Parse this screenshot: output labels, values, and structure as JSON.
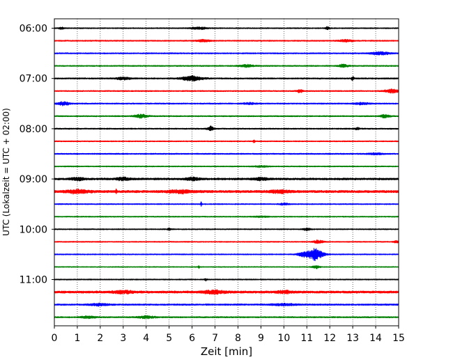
{
  "chart_data": {
    "type": "line",
    "chart_kind": "helicorder",
    "xlabel": "Zeit  [min]",
    "ylabel": "UTC (Lokalzeit = UTC + 02:00)",
    "xlim": [
      0,
      15
    ],
    "x_ticks": [
      0,
      1,
      2,
      3,
      4,
      5,
      6,
      7,
      8,
      9,
      10,
      11,
      12,
      13,
      14,
      15
    ],
    "y_tick_labels": [
      "06:00",
      "07:00",
      "08:00",
      "09:00",
      "10:00",
      "11:00"
    ],
    "grid": {
      "x": true,
      "style": "dotted"
    },
    "trace_interval_minutes": 15,
    "trace_colors": [
      "#000000",
      "#ff0000",
      "#0000ff",
      "#008000"
    ],
    "traces": [
      {
        "start": "06:00",
        "color": "#000000",
        "noise": 0.7,
        "events": [
          {
            "t": 0.3,
            "amp": 1.6,
            "width": 0.1
          },
          {
            "t": 6.3,
            "amp": 1.4,
            "width": 0.35
          },
          {
            "t": 11.9,
            "amp": 1.8,
            "width": 0.08
          }
        ]
      },
      {
        "start": "06:15",
        "color": "#ff0000",
        "noise": 0.8,
        "events": [
          {
            "t": 6.5,
            "amp": 1.3,
            "width": 0.3
          },
          {
            "t": 12.7,
            "amp": 1.3,
            "width": 0.3
          }
        ]
      },
      {
        "start": "06:30",
        "color": "#0000ff",
        "noise": 0.8,
        "events": [
          {
            "t": 14.2,
            "amp": 2.0,
            "width": 0.4
          }
        ]
      },
      {
        "start": "06:45",
        "color": "#008000",
        "noise": 0.8,
        "events": [
          {
            "t": 8.4,
            "amp": 1.5,
            "width": 0.3
          },
          {
            "t": 12.6,
            "amp": 2.0,
            "width": 0.2
          }
        ]
      },
      {
        "start": "07:00",
        "color": "#000000",
        "noise": 0.9,
        "events": [
          {
            "t": 3.0,
            "amp": 1.6,
            "width": 0.3
          },
          {
            "t": 6.0,
            "amp": 3.0,
            "width": 0.45
          },
          {
            "t": 13.0,
            "amp": 3.2,
            "width": 0.05
          }
        ]
      },
      {
        "start": "07:15",
        "color": "#ff0000",
        "noise": 0.8,
        "events": [
          {
            "t": 10.7,
            "amp": 2.0,
            "width": 0.12
          },
          {
            "t": 14.7,
            "amp": 2.3,
            "width": 0.3
          }
        ]
      },
      {
        "start": "07:30",
        "color": "#0000ff",
        "noise": 0.8,
        "events": [
          {
            "t": 0.4,
            "amp": 2.3,
            "width": 0.25
          },
          {
            "t": 8.5,
            "amp": 1.0,
            "width": 0.3
          },
          {
            "t": 13.4,
            "amp": 1.4,
            "width": 0.3
          }
        ]
      },
      {
        "start": "07:45",
        "color": "#008000",
        "noise": 0.8,
        "events": [
          {
            "t": 3.8,
            "amp": 2.2,
            "width": 0.3
          },
          {
            "t": 14.4,
            "amp": 2.0,
            "width": 0.2
          }
        ]
      },
      {
        "start": "08:00",
        "color": "#000000",
        "noise": 0.8,
        "events": [
          {
            "t": 6.8,
            "amp": 3.2,
            "width": 0.12
          },
          {
            "t": 13.2,
            "amp": 1.6,
            "width": 0.1
          }
        ]
      },
      {
        "start": "08:15",
        "color": "#ff0000",
        "noise": 0.7,
        "events": [
          {
            "t": 8.7,
            "amp": 2.8,
            "width": 0.03
          }
        ]
      },
      {
        "start": "08:30",
        "color": "#0000ff",
        "noise": 0.8,
        "events": [
          {
            "t": 14.0,
            "amp": 1.2,
            "width": 0.3
          }
        ]
      },
      {
        "start": "08:45",
        "color": "#008000",
        "noise": 0.7,
        "events": [
          {
            "t": 9.0,
            "amp": 1.0,
            "width": 0.3
          }
        ]
      },
      {
        "start": "09:00",
        "color": "#000000",
        "noise": 1.3,
        "events": [
          {
            "t": 1.0,
            "amp": 1.8,
            "width": 0.3
          },
          {
            "t": 3.0,
            "amp": 1.8,
            "width": 0.3
          },
          {
            "t": 6.0,
            "amp": 1.6,
            "width": 0.3
          },
          {
            "t": 9.0,
            "amp": 1.6,
            "width": 0.3
          }
        ]
      },
      {
        "start": "09:15",
        "color": "#ff0000",
        "noise": 1.6,
        "events": [
          {
            "t": 1.0,
            "amp": 2.0,
            "width": 0.5
          },
          {
            "t": 2.7,
            "amp": 2.6,
            "width": 0.03
          },
          {
            "t": 5.5,
            "amp": 1.8,
            "width": 0.5
          },
          {
            "t": 9.8,
            "amp": 1.8,
            "width": 0.4
          }
        ]
      },
      {
        "start": "09:30",
        "color": "#0000ff",
        "noise": 0.7,
        "events": [
          {
            "t": 6.4,
            "amp": 3.6,
            "width": 0.03
          },
          {
            "t": 10.0,
            "amp": 1.2,
            "width": 0.2
          }
        ]
      },
      {
        "start": "09:45",
        "color": "#008000",
        "noise": 0.7,
        "events": [
          {
            "t": 9.0,
            "amp": 0.8,
            "width": 0.3
          }
        ]
      },
      {
        "start": "10:00",
        "color": "#000000",
        "noise": 0.7,
        "events": [
          {
            "t": 5.0,
            "amp": 1.6,
            "width": 0.06
          },
          {
            "t": 11.0,
            "amp": 1.6,
            "width": 0.15
          }
        ]
      },
      {
        "start": "10:15",
        "color": "#ff0000",
        "noise": 0.7,
        "events": [
          {
            "t": 11.5,
            "amp": 2.2,
            "width": 0.2
          },
          {
            "t": 14.9,
            "amp": 1.5,
            "width": 0.1
          }
        ]
      },
      {
        "start": "10:30",
        "color": "#0000ff",
        "noise": 0.7,
        "events": [
          {
            "t": 11.4,
            "amp": 7.5,
            "width": 0.3
          },
          {
            "t": 10.9,
            "amp": 3.0,
            "width": 0.3
          }
        ]
      },
      {
        "start": "10:45",
        "color": "#008000",
        "noise": 0.6,
        "events": [
          {
            "t": 6.3,
            "amp": 1.8,
            "width": 0.03
          },
          {
            "t": 11.4,
            "amp": 2.2,
            "width": 0.15
          }
        ]
      },
      {
        "start": "11:00",
        "color": "#000000",
        "noise": 0.7,
        "events": [
          {
            "t": 6.6,
            "amp": 1.6,
            "width": 0.05
          }
        ]
      },
      {
        "start": "11:15",
        "color": "#ff0000",
        "noise": 1.5,
        "events": [
          {
            "t": 3.0,
            "amp": 1.8,
            "width": 0.4
          },
          {
            "t": 7.0,
            "amp": 1.9,
            "width": 0.5
          },
          {
            "t": 10.0,
            "amp": 1.7,
            "width": 0.3
          }
        ]
      },
      {
        "start": "11:30",
        "color": "#0000ff",
        "noise": 1.0,
        "events": [
          {
            "t": 2.0,
            "amp": 1.4,
            "width": 0.4
          },
          {
            "t": 10.0,
            "amp": 1.2,
            "width": 0.5
          }
        ]
      },
      {
        "start": "11:45",
        "color": "#008000",
        "noise": 0.9,
        "events": [
          {
            "t": 1.5,
            "amp": 1.4,
            "width": 0.3
          },
          {
            "t": 4.0,
            "amp": 1.4,
            "width": 0.4
          }
        ]
      }
    ]
  }
}
